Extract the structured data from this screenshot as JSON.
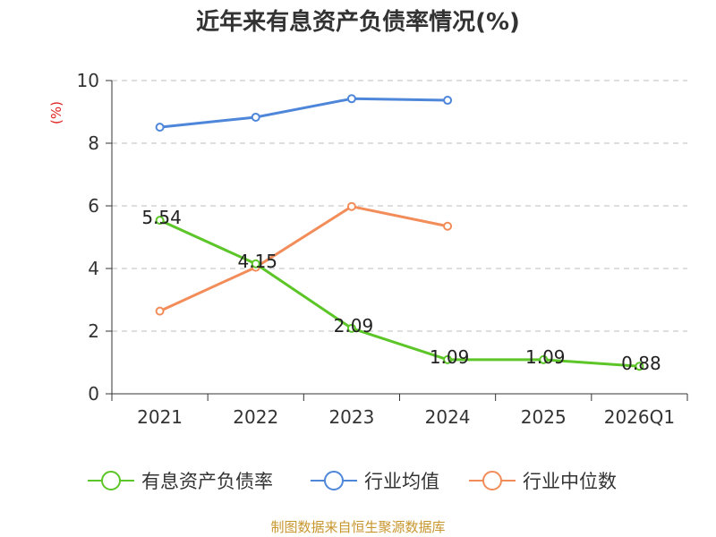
{
  "chart_data": {
    "type": "line",
    "title": "近年来有息资产负债率情况(%)",
    "ylabel": "(%)",
    "xlabel": "",
    "categories": [
      "2021",
      "2022",
      "2023",
      "2024",
      "2025",
      "2026Q1"
    ],
    "ylim": [
      0,
      10
    ],
    "yticks": [
      0,
      2,
      4,
      6,
      8,
      10
    ],
    "grid": true,
    "legend_position": "bottom",
    "series": [
      {
        "name": "有息资产负债率",
        "color": "#5cc528",
        "values": [
          5.54,
          4.15,
          2.09,
          1.09,
          1.09,
          0.88
        ],
        "data_labels": [
          "5.54",
          "4.15",
          "2.09",
          "1.09",
          "1.09",
          "0.88"
        ]
      },
      {
        "name": "行业均值",
        "color": "#4e86d9",
        "values": [
          8.51,
          8.83,
          9.42,
          9.37,
          null,
          null
        ]
      },
      {
        "name": "行业中位数",
        "color": "#f28d5a",
        "values": [
          2.64,
          4.04,
          5.98,
          5.35,
          null,
          null
        ]
      }
    ]
  },
  "footer": {
    "source": "制图数据来自恒生聚源数据库"
  }
}
